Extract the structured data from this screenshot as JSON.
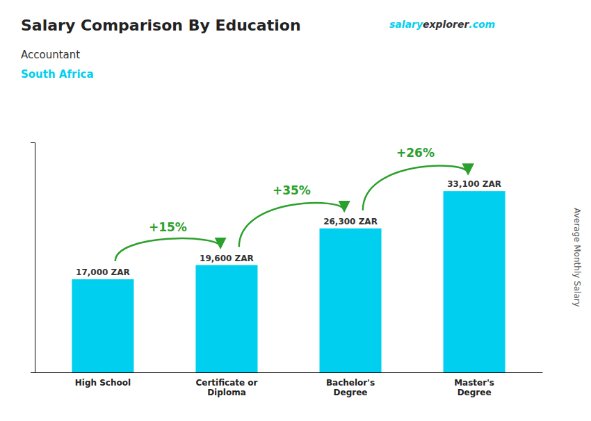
{
  "chart_data": {
    "type": "bar",
    "title": "Salary Comparison By Education",
    "subtitle": [
      "Accountant",
      "South Africa"
    ],
    "ylabel": "Average Monthly Salary",
    "categories": [
      "High School",
      "Certificate or\nDiploma",
      "Bachelor's\nDegree",
      "Master's\nDegree"
    ],
    "values": [
      17000,
      19600,
      26300,
      33100
    ],
    "value_labels": [
      "17,000 ZAR",
      "19,600 ZAR",
      "26,300 ZAR",
      "33,100 ZAR"
    ],
    "data_labels": true,
    "annotations": [
      "+15%",
      "+35%",
      "+26%"
    ],
    "source": [
      "salary",
      "explorer",
      ".com"
    ],
    "color": "#00CFEF",
    "ylim": [
      0,
      42000
    ],
    "tick_labels": "x",
    "grid": false
  }
}
